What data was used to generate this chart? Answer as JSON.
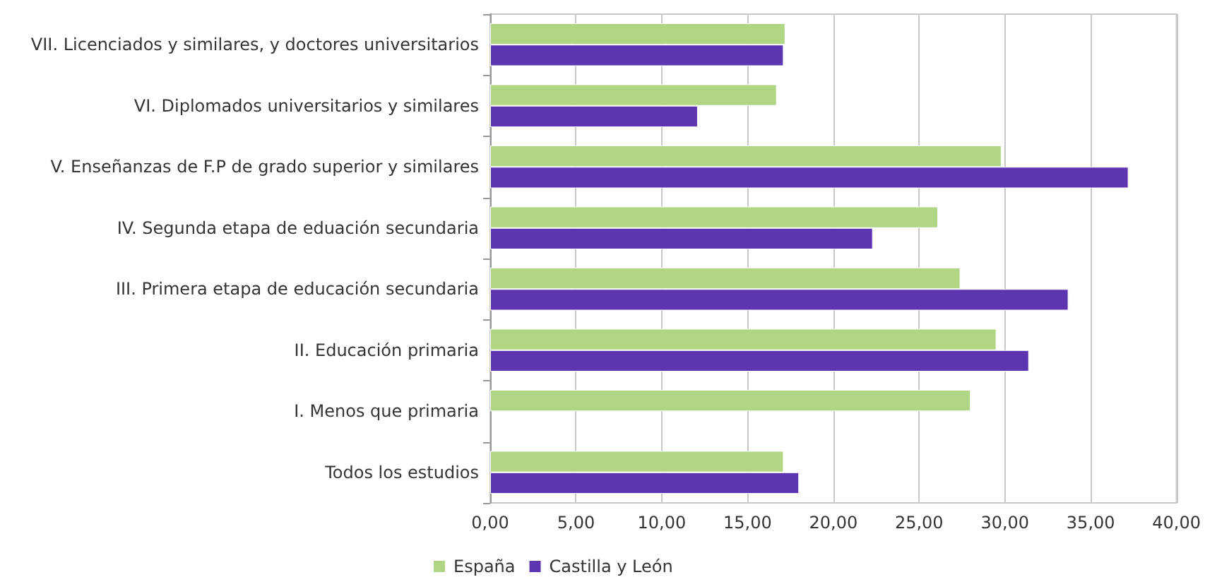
{
  "chart_data": {
    "type": "bar",
    "orientation": "horizontal",
    "categories": [
      "VII. Licenciados y similares, y doctores universitarios",
      "VI. Diplomados universitarios y similares",
      "V. Enseñanzas de F.P de grado superior y similares",
      "IV. Segunda etapa de eduación secundaria",
      "III. Primera etapa de educación secundaria",
      "II. Educación primaria",
      "I. Menos que primaria",
      "Todos los estudios"
    ],
    "series": [
      {
        "name": "España",
        "color": "#b0d583",
        "values": [
          17.2,
          16.7,
          29.8,
          26.1,
          27.4,
          29.5,
          28.0,
          17.1
        ]
      },
      {
        "name": "Castilla y León",
        "color": "#5e35b1",
        "values": [
          17.1,
          12.1,
          37.2,
          22.3,
          33.7,
          31.4,
          null,
          18.0
        ]
      }
    ],
    "xlim": [
      0,
      40
    ],
    "xticks": [
      {
        "value": 0,
        "label": "0,00"
      },
      {
        "value": 5,
        "label": "5,00"
      },
      {
        "value": 10,
        "label": "10,00"
      },
      {
        "value": 15,
        "label": "15,00"
      },
      {
        "value": 20,
        "label": "20,00"
      },
      {
        "value": 25,
        "label": "25,00"
      },
      {
        "value": 30,
        "label": "30,00"
      },
      {
        "value": 35,
        "label": "35,00"
      },
      {
        "value": 40,
        "label": "40,00"
      }
    ],
    "grid": "x",
    "legend": "bottom"
  }
}
